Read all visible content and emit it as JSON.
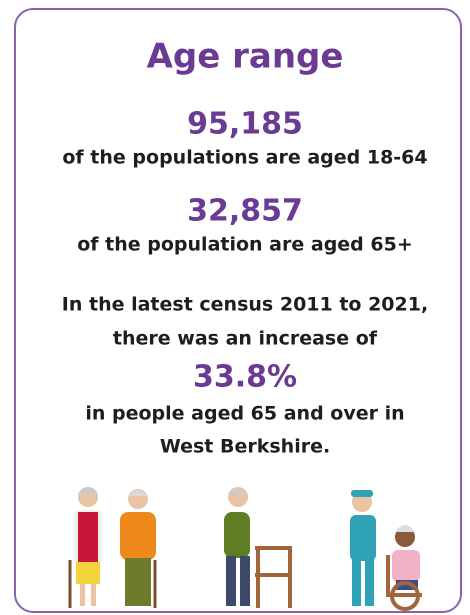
{
  "header": {
    "title": "Age range"
  },
  "stats": [
    {
      "value": "95,185",
      "text": "of the populations are aged 18-64"
    },
    {
      "value": "32,857",
      "text": "of the population are aged 65+"
    }
  ],
  "census": {
    "lines_before": [
      "In the latest census 2011 to 2021,",
      "there was an increase of"
    ],
    "value": "33.8%",
    "lines_after": [
      "in people aged 65 and over in",
      "West Berkshire."
    ]
  }
}
